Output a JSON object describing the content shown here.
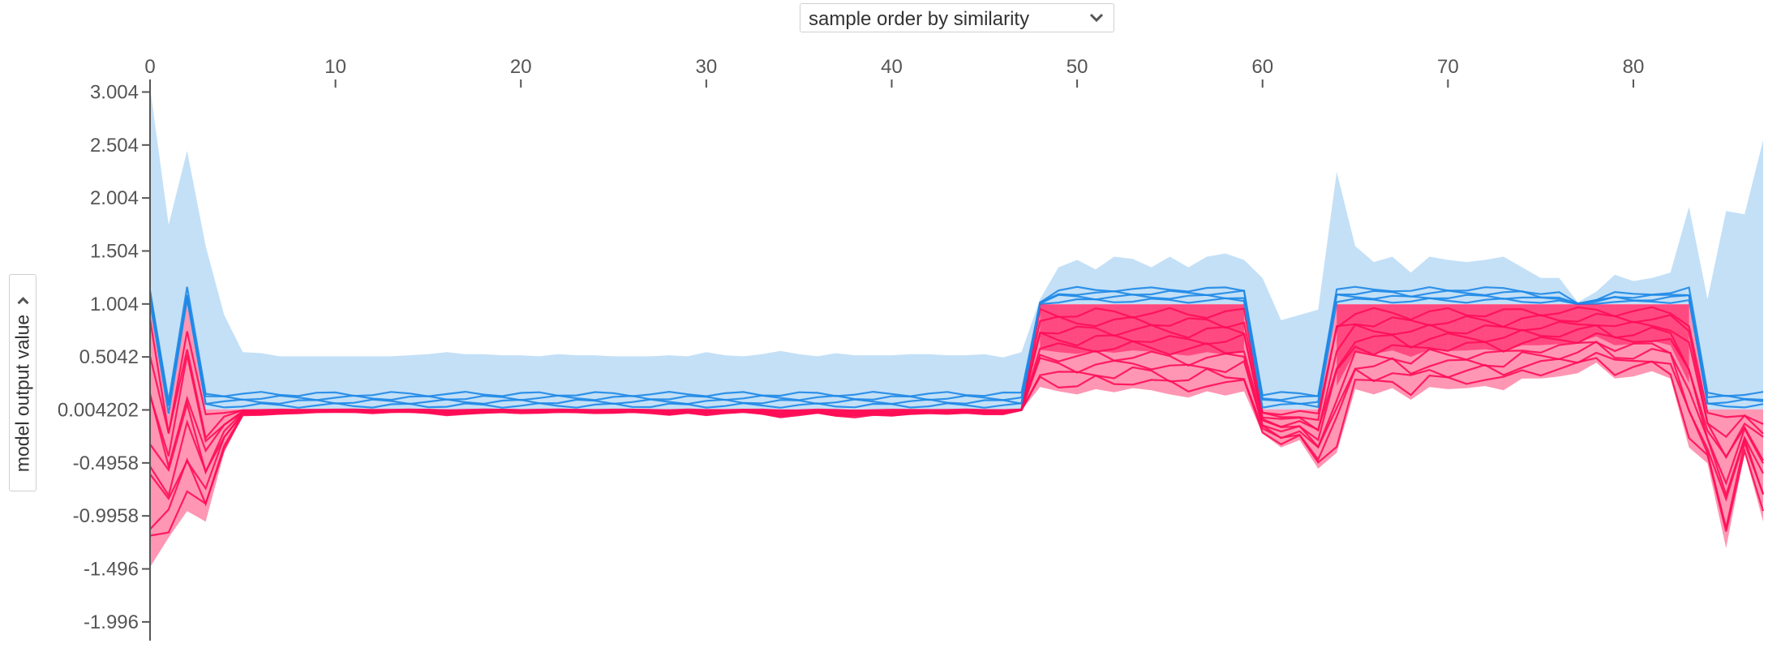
{
  "controls": {
    "order_select": {
      "value": "sample order by similarity",
      "icon": "chevron-down-icon"
    },
    "y_select": {
      "value": "model output value",
      "icon": "chevron-right-icon"
    }
  },
  "colors": {
    "positive_dark": "#ff0d57",
    "positive_light": "#ff96b4",
    "negative_dark": "#1e88e5",
    "negative_light": "#c3e0f7",
    "axis": "#555555"
  },
  "chart_data": {
    "type": "area",
    "title": "",
    "xlabel": "",
    "ylabel": "model output value",
    "x_order": "sample order by similarity",
    "xlim": [
      0,
      87
    ],
    "ylim": [
      -2.15,
      3.26
    ],
    "x_ticks": [
      0,
      10,
      20,
      30,
      40,
      50,
      60,
      70,
      80
    ],
    "y_ticks": [
      "3.004",
      "2.504",
      "2.004",
      "1.504",
      "1.004",
      "0.5042",
      "0.004202",
      "-0.4958",
      "-0.9958",
      "-1.496",
      "-1.996"
    ],
    "y_tick_values": [
      3.004,
      2.504,
      2.004,
      1.504,
      1.004,
      0.5042,
      0.004202,
      -0.4958,
      -0.9958,
      -1.496,
      -1.996
    ],
    "grid": false,
    "base_value": 0.004202,
    "x": [
      0,
      1,
      2,
      3,
      4,
      5,
      6,
      7,
      8,
      9,
      10,
      11,
      12,
      13,
      14,
      15,
      16,
      17,
      18,
      19,
      20,
      21,
      22,
      23,
      24,
      25,
      26,
      27,
      28,
      29,
      30,
      31,
      32,
      33,
      34,
      35,
      36,
      37,
      38,
      39,
      40,
      41,
      42,
      43,
      44,
      45,
      46,
      47,
      48,
      49,
      50,
      51,
      52,
      53,
      54,
      55,
      56,
      57,
      58,
      59,
      60,
      61,
      62,
      63,
      64,
      65,
      66,
      67,
      68,
      69,
      70,
      71,
      72,
      73,
      74,
      75,
      76,
      77,
      78,
      79,
      80,
      81,
      82,
      83,
      84,
      85,
      86,
      87
    ],
    "series": [
      {
        "role": "negative features (blue band, upper edge)",
        "values": [
          3.05,
          1.75,
          2.45,
          1.55,
          0.9,
          0.55,
          0.54,
          0.51,
          0.51,
          0.51,
          0.51,
          0.51,
          0.51,
          0.51,
          0.52,
          0.53,
          0.55,
          0.53,
          0.53,
          0.52,
          0.52,
          0.51,
          0.53,
          0.52,
          0.52,
          0.51,
          0.51,
          0.51,
          0.52,
          0.51,
          0.55,
          0.52,
          0.51,
          0.53,
          0.56,
          0.53,
          0.51,
          0.54,
          0.52,
          0.52,
          0.52,
          0.53,
          0.53,
          0.52,
          0.52,
          0.53,
          0.5,
          0.55,
          1.05,
          1.35,
          1.42,
          1.33,
          1.45,
          1.43,
          1.35,
          1.45,
          1.35,
          1.45,
          1.48,
          1.42,
          1.25,
          0.85,
          0.9,
          0.95,
          2.25,
          1.55,
          1.4,
          1.45,
          1.3,
          1.45,
          1.42,
          1.4,
          1.42,
          1.45,
          1.35,
          1.25,
          1.25,
          1.02,
          1.12,
          1.28,
          1.22,
          1.25,
          1.3,
          1.92,
          1.05,
          1.88,
          1.85,
          2.55
        ]
      },
      {
        "role": "model output value (f(x), boundary between red and blue bands)",
        "values": [
          1.0,
          -0.05,
          1.0,
          0.01,
          0.01,
          0.01,
          0.01,
          0.01,
          0.01,
          0.01,
          0.01,
          0.01,
          0.01,
          0.01,
          0.01,
          0.01,
          0.01,
          0.01,
          0.01,
          0.01,
          0.01,
          0.01,
          0.01,
          0.01,
          0.01,
          0.01,
          0.01,
          0.01,
          0.01,
          0.01,
          0.01,
          0.01,
          0.01,
          0.01,
          0.01,
          0.01,
          0.01,
          0.01,
          0.01,
          0.01,
          0.01,
          0.01,
          0.01,
          0.01,
          0.01,
          0.01,
          0.01,
          0.01,
          1.0,
          1.0,
          1.0,
          1.0,
          1.0,
          1.0,
          1.0,
          1.0,
          1.0,
          1.0,
          1.0,
          1.0,
          0.01,
          0.01,
          0.01,
          0.01,
          1.0,
          1.0,
          1.0,
          1.0,
          1.0,
          1.0,
          1.0,
          1.0,
          1.0,
          1.0,
          1.0,
          1.0,
          1.0,
          1.0,
          1.0,
          1.0,
          1.0,
          1.0,
          1.0,
          1.0,
          0.01,
          0.01,
          0.01,
          0.01
        ]
      },
      {
        "role": "positive features (red band, lower edge)",
        "values": [
          -1.48,
          -1.2,
          -0.95,
          -1.05,
          -0.4,
          -0.05,
          -0.05,
          -0.04,
          -0.03,
          -0.02,
          -0.02,
          -0.02,
          -0.03,
          -0.02,
          -0.02,
          -0.03,
          -0.05,
          -0.04,
          -0.03,
          -0.02,
          -0.03,
          -0.03,
          -0.02,
          -0.02,
          -0.03,
          -0.03,
          -0.02,
          -0.03,
          -0.05,
          -0.03,
          -0.05,
          -0.03,
          -0.02,
          -0.04,
          -0.07,
          -0.05,
          -0.03,
          -0.06,
          -0.07,
          -0.05,
          -0.06,
          -0.04,
          -0.03,
          -0.04,
          -0.03,
          -0.04,
          -0.04,
          0.0,
          0.22,
          0.18,
          0.15,
          0.2,
          0.17,
          0.21,
          0.19,
          0.15,
          0.12,
          0.18,
          0.14,
          0.18,
          -0.22,
          -0.35,
          -0.28,
          -0.55,
          -0.4,
          0.2,
          0.15,
          0.21,
          0.1,
          0.22,
          0.2,
          0.21,
          0.23,
          0.19,
          0.3,
          0.3,
          0.32,
          0.35,
          0.45,
          0.3,
          0.32,
          0.37,
          0.3,
          -0.35,
          -0.5,
          -1.3,
          -0.4,
          -1.05
        ]
      }
    ]
  }
}
